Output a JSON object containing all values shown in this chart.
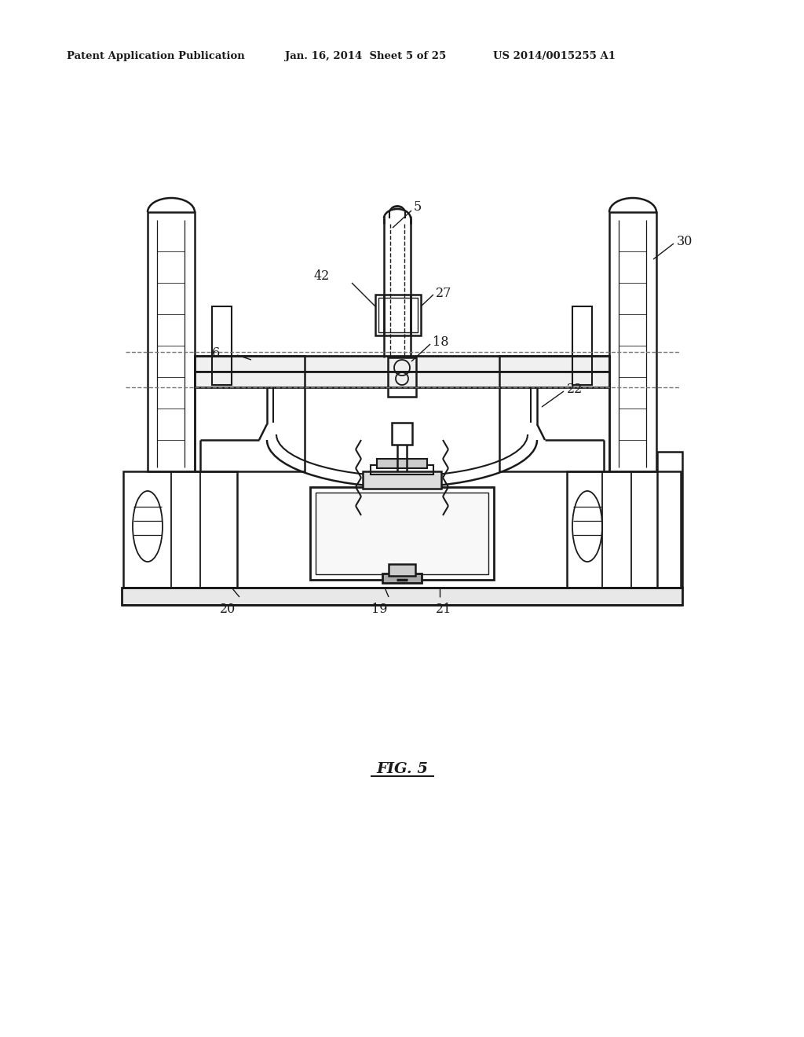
{
  "bg_color": "#ffffff",
  "line_color": "#1a1a1a",
  "header_left": "Patent Application Publication",
  "header_mid": "Jan. 16, 2014  Sheet 5 of 25",
  "header_right": "US 2014/0015255 A1",
  "fig_label": "FIG. 5"
}
